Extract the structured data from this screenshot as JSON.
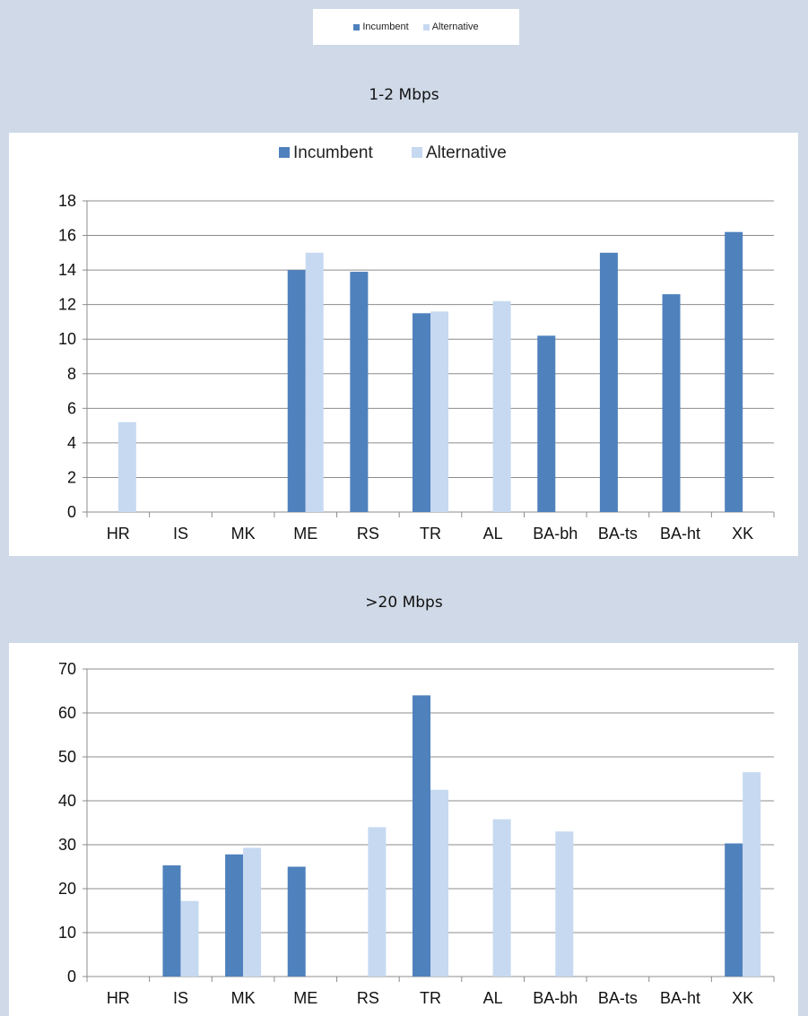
{
  "top_legend": {
    "items": [
      {
        "label": "Incumbent",
        "color": "#4f81bd"
      },
      {
        "label": "Alternative",
        "color": "#c6d9f1"
      }
    ]
  },
  "panels": [
    {
      "title": "1-2 Mbps"
    },
    {
      "title": ">20 Mbps"
    }
  ],
  "chart_data": [
    {
      "type": "bar",
      "categories": [
        "HR",
        "IS",
        "MK",
        "ME",
        "RS",
        "TR",
        "AL",
        "BA-bh",
        "BA-ts",
        "BA-ht",
        "XK"
      ],
      "series": [
        {
          "name": "Incumbent",
          "color": "#4f81bd",
          "values": [
            null,
            null,
            null,
            14.0,
            13.9,
            11.5,
            null,
            10.2,
            15.0,
            12.6,
            16.2
          ]
        },
        {
          "name": "Alternative",
          "color": "#c6d9f1",
          "values": [
            5.2,
            null,
            null,
            15.0,
            null,
            11.6,
            12.2,
            null,
            null,
            null,
            null
          ]
        }
      ],
      "ylim": [
        0,
        18
      ],
      "yticks": [
        0,
        2,
        4,
        6,
        8,
        10,
        12,
        14,
        16,
        18
      ],
      "grid": true,
      "legend": "top-center"
    },
    {
      "type": "bar",
      "categories": [
        "HR",
        "IS",
        "MK",
        "ME",
        "RS",
        "TR",
        "AL",
        "BA-bh",
        "BA-ts",
        "BA-ht",
        "XK"
      ],
      "series": [
        {
          "name": "Incumbent",
          "color": "#4f81bd",
          "values": [
            null,
            25.3,
            27.8,
            25.0,
            null,
            64.0,
            null,
            null,
            null,
            null,
            30.3
          ]
        },
        {
          "name": "Alternative",
          "color": "#c6d9f1",
          "values": [
            null,
            17.2,
            29.3,
            null,
            34.0,
            42.5,
            35.8,
            33.0,
            null,
            null,
            46.5
          ]
        }
      ],
      "ylim": [
        0,
        70
      ],
      "yticks": [
        0,
        10,
        20,
        30,
        40,
        50,
        60,
        70
      ],
      "grid": true,
      "legend": "none"
    }
  ]
}
